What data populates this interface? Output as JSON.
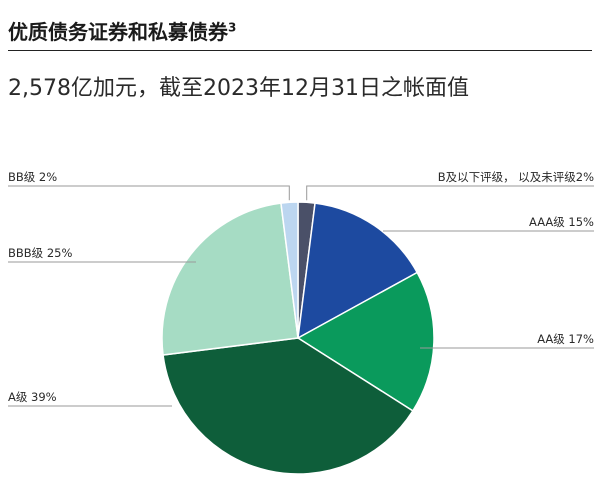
{
  "header": {
    "title": "优质债务证券和私募债券",
    "footnote": "3",
    "subtitle": "2,578亿加元，截至2023年12月31日之帐面值"
  },
  "chart_data": {
    "type": "pie",
    "title": "优质债务证券和私募债券",
    "subtitle": "2,578亿加元，截至2023年12月31日之帐面值",
    "start_angle_deg": 0,
    "direction": "clockwise",
    "slices": [
      {
        "label": "B及以下评级，以及未评级",
        "value": 2,
        "display": "B及以下评级， 以及未评级2%",
        "color": "#4a5068",
        "side": "right"
      },
      {
        "label": "AAA级",
        "value": 15,
        "display": "AAA级 15%",
        "color": "#1d4aa0",
        "side": "right"
      },
      {
        "label": "AA级",
        "value": 17,
        "display": "AA级 17%",
        "color": "#0a9a5c",
        "side": "right"
      },
      {
        "label": "A级",
        "value": 39,
        "display": "A级 39%",
        "color": "#0e5e3a",
        "side": "left"
      },
      {
        "label": "BBB级",
        "value": 25,
        "display": "BBB级 25%",
        "color": "#a6dcc4",
        "side": "left"
      },
      {
        "label": "BB级",
        "value": 2,
        "display": "BB级 2%",
        "color": "#bcd6f0",
        "side": "left"
      }
    ],
    "legend": "none",
    "label_style": "leader-lines"
  }
}
